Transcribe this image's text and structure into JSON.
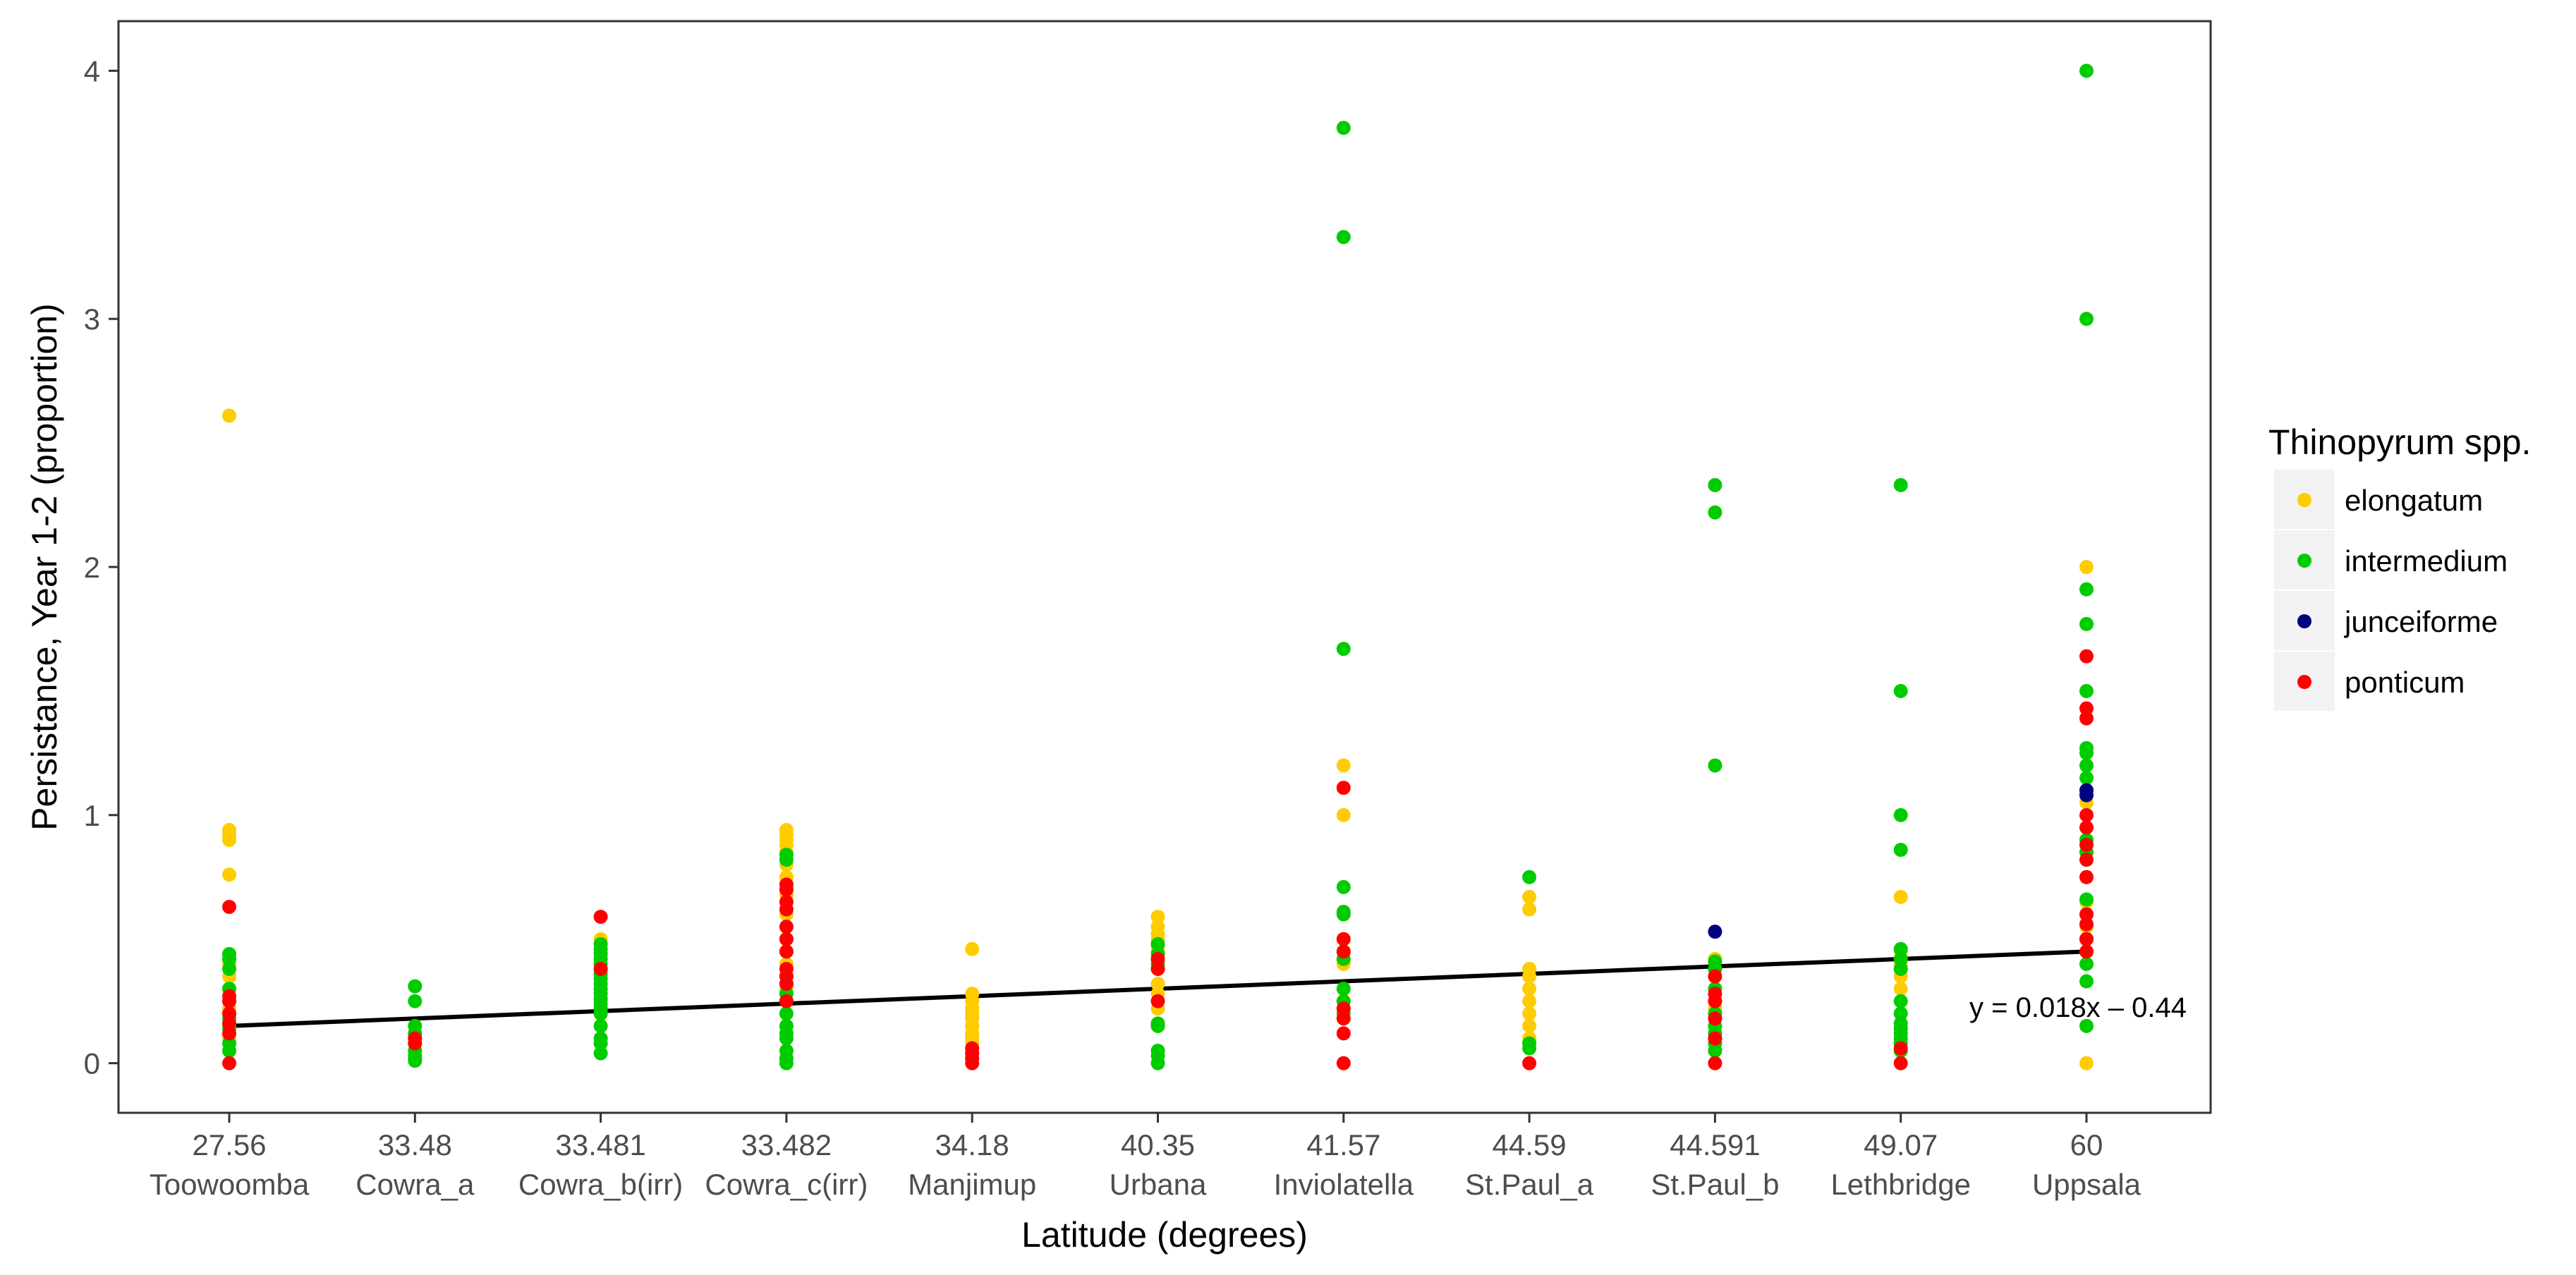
{
  "chart_data": {
    "type": "scatter",
    "xlabel": "Latitude (degrees)",
    "ylabel": "Persistance, Year 1-2 (proportion)",
    "ylim": [
      -0.2,
      4.2
    ],
    "yticks": [
      0,
      1,
      2,
      3,
      4
    ],
    "grid": false,
    "legend_position": "right",
    "legend_title": "Thinopyrum spp.",
    "categories": [
      {
        "lat": "27.56",
        "site": "Toowoomba"
      },
      {
        "lat": "33.48",
        "site": "Cowra_a"
      },
      {
        "lat": "33.481",
        "site": "Cowra_b(irr)"
      },
      {
        "lat": "33.482",
        "site": "Cowra_c(irr)"
      },
      {
        "lat": "34.18",
        "site": "Manjimup"
      },
      {
        "lat": "40.35",
        "site": "Urbana"
      },
      {
        "lat": "41.57",
        "site": "Inviolatella"
      },
      {
        "lat": "44.59",
        "site": "St.Paul_a"
      },
      {
        "lat": "44.591",
        "site": "St.Paul_b"
      },
      {
        "lat": "49.07",
        "site": "Lethbridge"
      },
      {
        "lat": "60",
        "site": "Uppsala"
      }
    ],
    "series": [
      {
        "name": "elongatum",
        "color": "#ffcc00",
        "points": [
          [
            0,
            2.61
          ],
          [
            0,
            0.94
          ],
          [
            0,
            0.92
          ],
          [
            0,
            0.9
          ],
          [
            0,
            0.76
          ],
          [
            0,
            0.4
          ],
          [
            0,
            0.35
          ],
          [
            0,
            0.3
          ],
          [
            0,
            0.22
          ],
          [
            0,
            0.15
          ],
          [
            0,
            0.1
          ],
          [
            2,
            0.5
          ],
          [
            2,
            0.48
          ],
          [
            2,
            0.45
          ],
          [
            2,
            0.4
          ],
          [
            2,
            0.35
          ],
          [
            2,
            0.3
          ],
          [
            2,
            0.25
          ],
          [
            2,
            0.2
          ],
          [
            3,
            0.94
          ],
          [
            3,
            0.92
          ],
          [
            3,
            0.9
          ],
          [
            3,
            0.88
          ],
          [
            3,
            0.85
          ],
          [
            3,
            0.8
          ],
          [
            3,
            0.75
          ],
          [
            3,
            0.72
          ],
          [
            3,
            0.68
          ],
          [
            3,
            0.6
          ],
          [
            3,
            0.5
          ],
          [
            3,
            0.45
          ],
          [
            3,
            0.4
          ],
          [
            3,
            0.3
          ],
          [
            4,
            0.46
          ],
          [
            4,
            0.28
          ],
          [
            4,
            0.25
          ],
          [
            4,
            0.22
          ],
          [
            4,
            0.2
          ],
          [
            4,
            0.18
          ],
          [
            4,
            0.15
          ],
          [
            4,
            0.12
          ],
          [
            4,
            0.1
          ],
          [
            4,
            0.08
          ],
          [
            4,
            0.06
          ],
          [
            4,
            0.04
          ],
          [
            5,
            0.59
          ],
          [
            5,
            0.55
          ],
          [
            5,
            0.52
          ],
          [
            5,
            0.5
          ],
          [
            5,
            0.47
          ],
          [
            5,
            0.45
          ],
          [
            5,
            0.42
          ],
          [
            5,
            0.38
          ],
          [
            5,
            0.32
          ],
          [
            5,
            0.28
          ],
          [
            5,
            0.22
          ],
          [
            5,
            0.15
          ],
          [
            6,
            1.2
          ],
          [
            6,
            1.0
          ],
          [
            6,
            0.45
          ],
          [
            6,
            0.4
          ],
          [
            6,
            0.3
          ],
          [
            6,
            0.25
          ],
          [
            7,
            0.67
          ],
          [
            7,
            0.62
          ],
          [
            7,
            0.38
          ],
          [
            7,
            0.35
          ],
          [
            7,
            0.3
          ],
          [
            7,
            0.25
          ],
          [
            7,
            0.2
          ],
          [
            7,
            0.15
          ],
          [
            7,
            0.1
          ],
          [
            7,
            0.08
          ],
          [
            8,
            0.42
          ],
          [
            8,
            0.38
          ],
          [
            8,
            0.3
          ],
          [
            8,
            0.22
          ],
          [
            9,
            0.67
          ],
          [
            9,
            0.45
          ],
          [
            9,
            0.4
          ],
          [
            9,
            0.35
          ],
          [
            9,
            0.3
          ],
          [
            10,
            2.0
          ],
          [
            10,
            1.05
          ],
          [
            10,
            0.95
          ],
          [
            10,
            0.9
          ],
          [
            10,
            0.85
          ],
          [
            10,
            0.75
          ],
          [
            10,
            0.65
          ],
          [
            10,
            0.55
          ],
          [
            10,
            0.0
          ]
        ]
      },
      {
        "name": "intermedium",
        "color": "#00cc00",
        "points": [
          [
            0,
            0.44
          ],
          [
            0,
            0.42
          ],
          [
            0,
            0.38
          ],
          [
            0,
            0.3
          ],
          [
            0,
            0.25
          ],
          [
            0,
            0.2
          ],
          [
            0,
            0.18
          ],
          [
            0,
            0.14
          ],
          [
            0,
            0.08
          ],
          [
            0,
            0.05
          ],
          [
            1,
            0.31
          ],
          [
            1,
            0.25
          ],
          [
            1,
            0.15
          ],
          [
            1,
            0.12
          ],
          [
            1,
            0.1
          ],
          [
            1,
            0.08
          ],
          [
            1,
            0.05
          ],
          [
            1,
            0.03
          ],
          [
            1,
            0.02
          ],
          [
            1,
            0.01
          ],
          [
            2,
            0.48
          ],
          [
            2,
            0.46
          ],
          [
            2,
            0.44
          ],
          [
            2,
            0.42
          ],
          [
            2,
            0.4
          ],
          [
            2,
            0.38
          ],
          [
            2,
            0.36
          ],
          [
            2,
            0.34
          ],
          [
            2,
            0.32
          ],
          [
            2,
            0.3
          ],
          [
            2,
            0.28
          ],
          [
            2,
            0.26
          ],
          [
            2,
            0.24
          ],
          [
            2,
            0.22
          ],
          [
            2,
            0.2
          ],
          [
            2,
            0.15
          ],
          [
            2,
            0.1
          ],
          [
            2,
            0.08
          ],
          [
            2,
            0.04
          ],
          [
            3,
            0.84
          ],
          [
            3,
            0.82
          ],
          [
            3,
            0.5
          ],
          [
            3,
            0.45
          ],
          [
            3,
            0.35
          ],
          [
            3,
            0.32
          ],
          [
            3,
            0.28
          ],
          [
            3,
            0.25
          ],
          [
            3,
            0.2
          ],
          [
            3,
            0.15
          ],
          [
            3,
            0.12
          ],
          [
            3,
            0.1
          ],
          [
            3,
            0.05
          ],
          [
            3,
            0.02
          ],
          [
            3,
            0.0
          ],
          [
            5,
            0.48
          ],
          [
            5,
            0.44
          ],
          [
            5,
            0.4
          ],
          [
            5,
            0.16
          ],
          [
            5,
            0.15
          ],
          [
            5,
            0.05
          ],
          [
            5,
            0.03
          ],
          [
            5,
            0.0
          ],
          [
            6,
            3.77
          ],
          [
            6,
            3.33
          ],
          [
            6,
            1.67
          ],
          [
            6,
            0.71
          ],
          [
            6,
            0.61
          ],
          [
            6,
            0.6
          ],
          [
            6,
            0.42
          ],
          [
            6,
            0.3
          ],
          [
            6,
            0.25
          ],
          [
            6,
            0.2
          ],
          [
            7,
            0.75
          ],
          [
            7,
            0.08
          ],
          [
            7,
            0.06
          ],
          [
            8,
            2.33
          ],
          [
            8,
            2.22
          ],
          [
            8,
            1.2
          ],
          [
            8,
            0.41
          ],
          [
            8,
            0.38
          ],
          [
            8,
            0.3
          ],
          [
            8,
            0.25
          ],
          [
            8,
            0.2
          ],
          [
            8,
            0.15
          ],
          [
            8,
            0.12
          ],
          [
            8,
            0.1
          ],
          [
            8,
            0.08
          ],
          [
            8,
            0.05
          ],
          [
            9,
            2.33
          ],
          [
            9,
            1.5
          ],
          [
            9,
            1.0
          ],
          [
            9,
            0.86
          ],
          [
            9,
            0.46
          ],
          [
            9,
            0.42
          ],
          [
            9,
            0.38
          ],
          [
            9,
            0.25
          ],
          [
            9,
            0.2
          ],
          [
            9,
            0.16
          ],
          [
            9,
            0.14
          ],
          [
            9,
            0.12
          ],
          [
            9,
            0.1
          ],
          [
            9,
            0.08
          ],
          [
            9,
            0.05
          ],
          [
            10,
            4.0
          ],
          [
            10,
            3.0
          ],
          [
            10,
            1.91
          ],
          [
            10,
            1.77
          ],
          [
            10,
            1.5
          ],
          [
            10,
            1.27
          ],
          [
            10,
            1.25
          ],
          [
            10,
            1.2
          ],
          [
            10,
            1.15
          ],
          [
            10,
            1.1
          ],
          [
            10,
            0.9
          ],
          [
            10,
            0.85
          ],
          [
            10,
            0.66
          ],
          [
            10,
            0.6
          ],
          [
            10,
            0.5
          ],
          [
            10,
            0.45
          ],
          [
            10,
            0.4
          ],
          [
            10,
            0.33
          ],
          [
            10,
            0.15
          ]
        ]
      },
      {
        "name": "junceiforme",
        "color": "#000080",
        "points": [
          [
            8,
            0.53
          ],
          [
            10,
            1.1
          ],
          [
            10,
            1.08
          ],
          [
            10,
            0.5
          ]
        ]
      },
      {
        "name": "ponticum",
        "color": "#ff0000",
        "points": [
          [
            0,
            0.63
          ],
          [
            0,
            0.27
          ],
          [
            0,
            0.25
          ],
          [
            0,
            0.2
          ],
          [
            0,
            0.16
          ],
          [
            0,
            0.12
          ],
          [
            0,
            0.0
          ],
          [
            1,
            0.1
          ],
          [
            1,
            0.08
          ],
          [
            2,
            0.59
          ],
          [
            2,
            0.38
          ],
          [
            3,
            0.72
          ],
          [
            3,
            0.7
          ],
          [
            3,
            0.65
          ],
          [
            3,
            0.62
          ],
          [
            3,
            0.55
          ],
          [
            3,
            0.5
          ],
          [
            3,
            0.45
          ],
          [
            3,
            0.38
          ],
          [
            3,
            0.35
          ],
          [
            3,
            0.32
          ],
          [
            3,
            0.25
          ],
          [
            4,
            0.06
          ],
          [
            4,
            0.04
          ],
          [
            4,
            0.02
          ],
          [
            4,
            0.0
          ],
          [
            5,
            0.42
          ],
          [
            5,
            0.38
          ],
          [
            5,
            0.25
          ],
          [
            6,
            1.11
          ],
          [
            6,
            0.5
          ],
          [
            6,
            0.45
          ],
          [
            6,
            0.22
          ],
          [
            6,
            0.18
          ],
          [
            6,
            0.12
          ],
          [
            6,
            0.0
          ],
          [
            7,
            0.0
          ],
          [
            8,
            0.35
          ],
          [
            8,
            0.28
          ],
          [
            8,
            0.25
          ],
          [
            8,
            0.18
          ],
          [
            8,
            0.1
          ],
          [
            8,
            0.0
          ],
          [
            9,
            0.06
          ],
          [
            9,
            0.0
          ],
          [
            10,
            1.64
          ],
          [
            10,
            1.43
          ],
          [
            10,
            1.39
          ],
          [
            10,
            1.0
          ],
          [
            10,
            0.95
          ],
          [
            10,
            0.88
          ],
          [
            10,
            0.82
          ],
          [
            10,
            0.75
          ],
          [
            10,
            0.6
          ],
          [
            10,
            0.56
          ],
          [
            10,
            0.5
          ],
          [
            10,
            0.45
          ]
        ]
      }
    ],
    "trendline": {
      "start": [
        0,
        0.15
      ],
      "end": [
        10,
        0.45
      ],
      "color": "#000000"
    },
    "annotation": "y = 0.018x – 0.44"
  }
}
